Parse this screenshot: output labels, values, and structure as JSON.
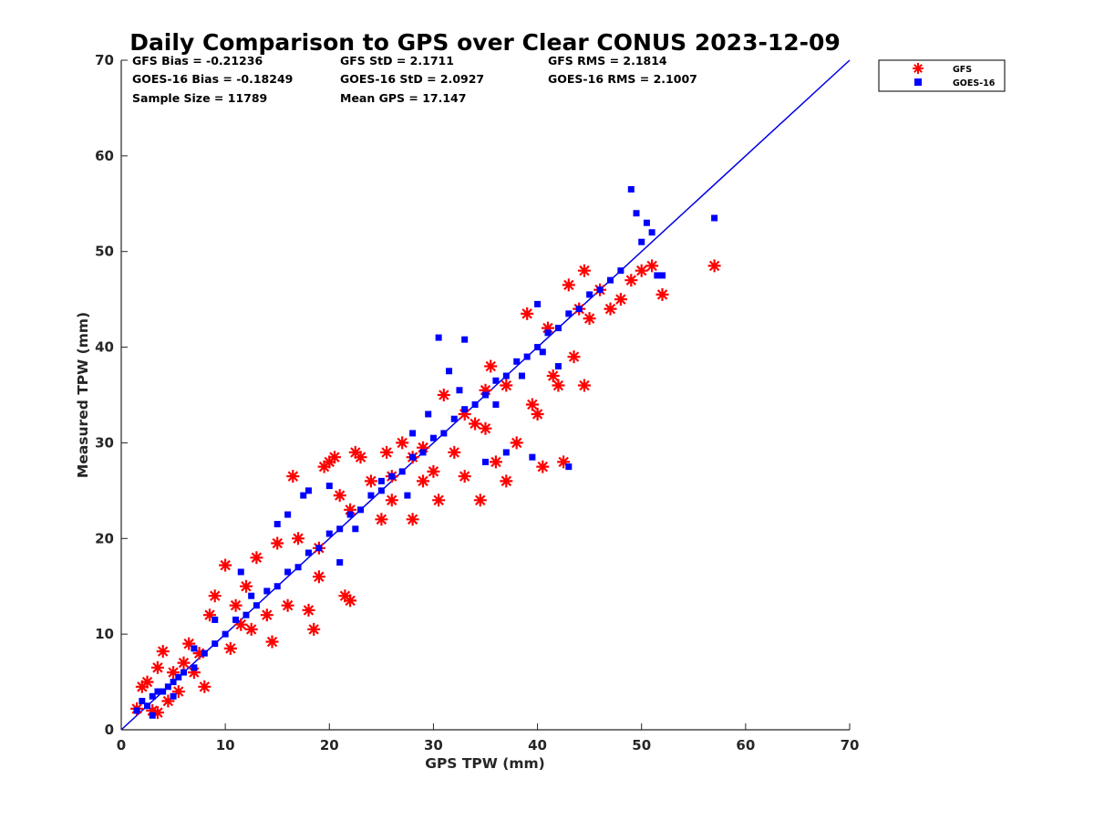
{
  "chart_data": {
    "type": "scatter",
    "title": "Daily Comparison to GPS over Clear CONUS 2023-12-09",
    "xlabel": "GPS TPW (mm)",
    "ylabel": "Measured TPW (mm)",
    "xlim": [
      0,
      70
    ],
    "ylim": [
      0,
      70
    ],
    "xticks": [
      0,
      10,
      20,
      30,
      40,
      50,
      60,
      70
    ],
    "yticks": [
      0,
      10,
      20,
      30,
      40,
      50,
      60,
      70
    ],
    "xtick_labels": [
      "0",
      "10",
      "20",
      "30",
      "40",
      "50",
      "60",
      "70"
    ],
    "ytick_labels": [
      "0",
      "10",
      "20",
      "30",
      "40",
      "50",
      "60",
      "70"
    ],
    "legend_position": "outside-top-right",
    "reference_line": {
      "name": "1:1 line",
      "x": [
        0,
        70
      ],
      "y": [
        0,
        70
      ],
      "color": "#0000e6"
    },
    "stats": [
      [
        "GFS Bias = -0.21236",
        "GFS StD = 2.1711",
        "GFS RMS = 2.1814"
      ],
      [
        "GOES-16 Bias = -0.18249",
        "GOES-16 StD = 2.0927",
        "GOES-16 RMS = 2.1007"
      ],
      [
        "Sample Size = 11789",
        "Mean GPS = 17.147"
      ]
    ],
    "series": [
      {
        "name": "GFS",
        "marker": "asterisk",
        "color": "#ff0000",
        "points": [
          [
            1.5,
            2.2
          ],
          [
            2.0,
            4.5
          ],
          [
            2.5,
            5.0
          ],
          [
            3.0,
            2.0
          ],
          [
            3.5,
            6.5
          ],
          [
            3.5,
            1.8
          ],
          [
            4.0,
            8.2
          ],
          [
            4.5,
            3.0
          ],
          [
            5.0,
            6.0
          ],
          [
            5.5,
            4.0
          ],
          [
            6.0,
            7.0
          ],
          [
            6.5,
            9.0
          ],
          [
            7.0,
            6.0
          ],
          [
            7.5,
            8.0
          ],
          [
            8.0,
            4.5
          ],
          [
            8.5,
            12.0
          ],
          [
            9.0,
            14.0
          ],
          [
            10.0,
            17.2
          ],
          [
            10.5,
            8.5
          ],
          [
            11.0,
            13.0
          ],
          [
            12.0,
            15.0
          ],
          [
            12.5,
            10.5
          ],
          [
            13.0,
            18.0
          ],
          [
            14.0,
            12.0
          ],
          [
            14.5,
            9.2
          ],
          [
            15.0,
            19.5
          ],
          [
            16.0,
            13.0
          ],
          [
            16.5,
            26.5
          ],
          [
            17.0,
            20.0
          ],
          [
            18.0,
            12.5
          ],
          [
            18.5,
            10.5
          ],
          [
            19.0,
            16.0
          ],
          [
            19.5,
            27.5
          ],
          [
            20.0,
            28.0
          ],
          [
            20.5,
            28.5
          ],
          [
            21.0,
            24.5
          ],
          [
            21.5,
            14.0
          ],
          [
            22.0,
            13.5
          ],
          [
            22.5,
            29.0
          ],
          [
            23.0,
            28.5
          ],
          [
            24.0,
            26.0
          ],
          [
            25.0,
            22.0
          ],
          [
            25.5,
            29.0
          ],
          [
            26.0,
            24.0
          ],
          [
            27.0,
            30.0
          ],
          [
            28.0,
            22.0
          ],
          [
            29.0,
            26.0
          ],
          [
            30.0,
            27.0
          ],
          [
            30.5,
            24.0
          ],
          [
            31.0,
            35.0
          ],
          [
            32.0,
            29.0
          ],
          [
            33.0,
            26.5
          ],
          [
            34.0,
            32.0
          ],
          [
            34.5,
            24.0
          ],
          [
            35.0,
            35.5
          ],
          [
            35.5,
            38.0
          ],
          [
            36.0,
            28.0
          ],
          [
            37.0,
            26.0
          ],
          [
            38.0,
            30.0
          ],
          [
            39.0,
            43.5
          ],
          [
            39.5,
            34.0
          ],
          [
            40.0,
            33.0
          ],
          [
            40.5,
            27.5
          ],
          [
            41.0,
            42.0
          ],
          [
            42.0,
            36.0
          ],
          [
            42.5,
            28.0
          ],
          [
            43.0,
            46.5
          ],
          [
            43.5,
            39.0
          ],
          [
            44.0,
            44.0
          ],
          [
            44.5,
            48.0
          ],
          [
            45.0,
            43.0
          ],
          [
            46.0,
            46.0
          ],
          [
            47.0,
            44.0
          ],
          [
            48.0,
            45.0
          ],
          [
            49.0,
            47.0
          ],
          [
            50.0,
            48.0
          ],
          [
            51.0,
            48.5
          ],
          [
            52.0,
            45.5
          ],
          [
            57.0,
            48.5
          ],
          [
            22.0,
            23.0
          ],
          [
            26.0,
            26.5
          ],
          [
            29.0,
            29.5
          ],
          [
            33.0,
            33.0
          ],
          [
            37.0,
            36.0
          ],
          [
            44.5,
            36.0
          ],
          [
            41.5,
            37.0
          ],
          [
            35.0,
            31.5
          ],
          [
            28.0,
            28.5
          ],
          [
            19.0,
            19.0
          ],
          [
            11.5,
            11.0
          ]
        ]
      },
      {
        "name": "GOES-16",
        "marker": "square",
        "color": "#0000ff",
        "points": [
          [
            1.5,
            2.0
          ],
          [
            2.0,
            3.0
          ],
          [
            2.5,
            2.5
          ],
          [
            3.0,
            3.5
          ],
          [
            3.5,
            4.0
          ],
          [
            4.0,
            4.0
          ],
          [
            4.5,
            4.5
          ],
          [
            5.0,
            5.0
          ],
          [
            5.5,
            5.5
          ],
          [
            6.0,
            6.0
          ],
          [
            7.0,
            6.5
          ],
          [
            8.0,
            8.0
          ],
          [
            9.0,
            9.0
          ],
          [
            10.0,
            10.0
          ],
          [
            11.0,
            11.5
          ],
          [
            11.5,
            16.5
          ],
          [
            12.0,
            12.0
          ],
          [
            13.0,
            13.0
          ],
          [
            14.0,
            14.5
          ],
          [
            15.0,
            15.0
          ],
          [
            16.0,
            16.5
          ],
          [
            17.0,
            17.0
          ],
          [
            18.0,
            18.5
          ],
          [
            19.0,
            19.0
          ],
          [
            20.0,
            20.5
          ],
          [
            21.0,
            21.0
          ],
          [
            22.0,
            22.5
          ],
          [
            23.0,
            23.0
          ],
          [
            24.0,
            24.5
          ],
          [
            25.0,
            25.0
          ],
          [
            26.0,
            26.5
          ],
          [
            27.0,
            27.0
          ],
          [
            28.0,
            28.5
          ],
          [
            29.0,
            29.0
          ],
          [
            30.0,
            30.5
          ],
          [
            30.5,
            41.0
          ],
          [
            31.0,
            31.0
          ],
          [
            31.5,
            37.5
          ],
          [
            32.0,
            32.5
          ],
          [
            33.0,
            33.5
          ],
          [
            33.0,
            40.8
          ],
          [
            34.0,
            34.0
          ],
          [
            35.0,
            35.0
          ],
          [
            36.0,
            36.5
          ],
          [
            37.0,
            37.0
          ],
          [
            38.0,
            38.5
          ],
          [
            39.0,
            39.0
          ],
          [
            40.0,
            40.0
          ],
          [
            40.0,
            44.5
          ],
          [
            41.0,
            41.5
          ],
          [
            42.0,
            42.0
          ],
          [
            43.0,
            43.5
          ],
          [
            44.0,
            44.0
          ],
          [
            45.0,
            45.5
          ],
          [
            46.0,
            46.0
          ],
          [
            47.0,
            47.0
          ],
          [
            48.0,
            48.0
          ],
          [
            49.0,
            56.5
          ],
          [
            49.5,
            54.0
          ],
          [
            50.0,
            51.0
          ],
          [
            50.5,
            53.0
          ],
          [
            51.0,
            52.0
          ],
          [
            51.5,
            47.5
          ],
          [
            52.0,
            47.5
          ],
          [
            57.0,
            53.5
          ],
          [
            17.5,
            24.5
          ],
          [
            16.0,
            22.5
          ],
          [
            18.0,
            25.0
          ],
          [
            20.0,
            25.5
          ],
          [
            22.5,
            21.0
          ],
          [
            25.0,
            26.0
          ],
          [
            28.0,
            31.0
          ],
          [
            29.5,
            33.0
          ],
          [
            32.5,
            35.5
          ],
          [
            36.0,
            34.0
          ],
          [
            38.5,
            37.0
          ],
          [
            40.5,
            39.5
          ],
          [
            42.0,
            38.0
          ],
          [
            39.5,
            28.5
          ],
          [
            43.0,
            27.5
          ],
          [
            15.0,
            21.5
          ],
          [
            12.5,
            14.0
          ],
          [
            9.0,
            11.5
          ],
          [
            7.0,
            8.5
          ],
          [
            3.0,
            1.5
          ],
          [
            5.0,
            3.5
          ],
          [
            35.0,
            28.0
          ],
          [
            37.0,
            29.0
          ],
          [
            21.0,
            17.5
          ],
          [
            27.5,
            24.5
          ]
        ]
      }
    ]
  }
}
